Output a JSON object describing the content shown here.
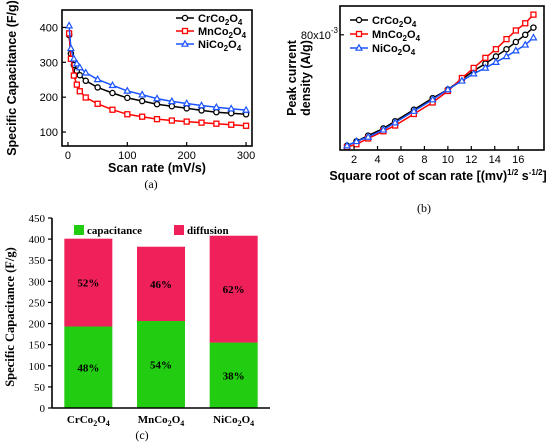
{
  "chart_data": [
    {
      "type": "line",
      "panel_label": "(a)",
      "xlabel": "Scan rate (mV/s)",
      "ylabel": "Specific Capacitance (F/g)",
      "xlim": [
        -10,
        310
      ],
      "ylim": [
        60,
        450
      ],
      "xticks": [
        0,
        100,
        200,
        300
      ],
      "yticks": [
        100,
        200,
        300,
        400
      ],
      "grid": false,
      "legend": "top-right",
      "series": [
        {
          "name": "CrCo2O4",
          "name_parts": [
            "CrCo",
            "2",
            "O",
            "4"
          ],
          "color": "#000000",
          "marker": "circle",
          "x": [
            2,
            5,
            10,
            15,
            20,
            30,
            50,
            75,
            100,
            125,
            150,
            175,
            200,
            225,
            250,
            275,
            300
          ],
          "y": [
            378,
            325,
            292,
            276,
            263,
            247,
            228,
            212,
            198,
            189,
            180,
            174,
            168,
            162,
            157,
            154,
            151
          ]
        },
        {
          "name": "MnCo2O4",
          "name_parts": [
            "MnCo",
            "2",
            "O",
            "4"
          ],
          "color": "#ff0000",
          "marker": "square",
          "x": [
            2,
            5,
            10,
            15,
            20,
            30,
            50,
            75,
            100,
            125,
            150,
            175,
            200,
            225,
            250,
            275,
            300
          ],
          "y": [
            383,
            310,
            262,
            236,
            217,
            199,
            181,
            164,
            151,
            144,
            137,
            133,
            130,
            127,
            124,
            121,
            118
          ]
        },
        {
          "name": "NiCo2O4",
          "name_parts": [
            "NiCo",
            "2",
            "O",
            "4"
          ],
          "color": "#1a53ff",
          "marker": "triangle",
          "x": [
            2,
            5,
            10,
            15,
            20,
            30,
            50,
            75,
            100,
            125,
            150,
            175,
            200,
            225,
            250,
            275,
            300
          ],
          "y": [
            405,
            340,
            310,
            296,
            285,
            270,
            251,
            234,
            218,
            207,
            196,
            188,
            182,
            176,
            171,
            167,
            163
          ]
        }
      ]
    },
    {
      "type": "line",
      "panel_label": "(b)",
      "xlabel": "Square root of scan rate [(mv)^1/2 s^-1/2]",
      "xlabel_parts": {
        "main": "Square root of scan rate [(mv)",
        "sup1": "1/2",
        "mid": " s",
        "sup2": "-1/2",
        "end": "]"
      },
      "ylabel": [
        "Peak current",
        "density (A/g)"
      ],
      "ytick_prefix": "80x10",
      "ytick_exp": "-3",
      "xlim": [
        0.8,
        18.2
      ],
      "ylim": [
        0,
        100
      ],
      "xticks": [
        2,
        4,
        6,
        8,
        10,
        12,
        14,
        16
      ],
      "yticks": [
        80
      ],
      "grid": false,
      "legend": "top-left",
      "series": [
        {
          "name": "CrCo2O4",
          "name_parts": [
            "CrCo",
            "2",
            "O",
            "4"
          ],
          "color": "#000000",
          "marker": "circle",
          "x": [
            1.4,
            2.2,
            3.2,
            4.5,
            5.5,
            7.1,
            8.7,
            10.0,
            11.2,
            12.2,
            13.2,
            14.1,
            15.0,
            15.8,
            16.6,
            17.3
          ],
          "y": [
            3,
            6,
            10,
            15,
            20,
            28,
            36,
            42,
            49,
            55,
            60,
            65,
            70,
            75,
            80,
            85
          ]
        },
        {
          "name": "MnCo2O4",
          "name_parts": [
            "MnCo",
            "2",
            "O",
            "4"
          ],
          "color": "#ff0000",
          "marker": "square",
          "x": [
            1.4,
            2.2,
            3.2,
            4.5,
            5.5,
            7.1,
            8.7,
            10.0,
            11.2,
            12.2,
            13.2,
            14.1,
            15.0,
            15.8,
            16.6,
            17.3
          ],
          "y": [
            2,
            4,
            8,
            13,
            17,
            25,
            33,
            41,
            50,
            57,
            64,
            70,
            77,
            83,
            88,
            94
          ]
        },
        {
          "name": "NiCo2O4",
          "name_parts": [
            "NiCo",
            "2",
            "O",
            "4"
          ],
          "color": "#1a53ff",
          "marker": "triangle",
          "x": [
            1.4,
            2.2,
            3.2,
            4.5,
            5.5,
            7.1,
            8.7,
            10.0,
            11.2,
            12.2,
            13.2,
            14.1,
            15.0,
            15.8,
            16.6,
            17.3
          ],
          "y": [
            3,
            6,
            9,
            14,
            19,
            27,
            35,
            42,
            48,
            53,
            57,
            61,
            65,
            69,
            73,
            78
          ]
        }
      ]
    },
    {
      "type": "bar",
      "stacked": true,
      "panel_label": "(c)",
      "ylabel": "Specific Capacitance (F/g)",
      "ylim": [
        0,
        450
      ],
      "yticks": [
        0,
        50,
        100,
        150,
        200,
        250,
        300,
        350,
        400,
        450
      ],
      "categories": [
        "CrCo2O4",
        "MnCo2O4",
        "NiCo2O4"
      ],
      "category_parts": [
        [
          "CrCo",
          "2",
          "O",
          "4"
        ],
        [
          "MnCo",
          "2",
          "O",
          "4"
        ],
        [
          "NiCo",
          "2",
          "O",
          "4"
        ]
      ],
      "legend": "top",
      "series": [
        {
          "name": "capacitance",
          "color": "#22cc11",
          "values": [
            193,
            206,
            155
          ],
          "labels": [
            "48%",
            "54%",
            "38%"
          ]
        },
        {
          "name": "diffusion",
          "color": "#f0205a",
          "values": [
            208,
            176,
            253
          ],
          "labels": [
            "52%",
            "46%",
            "62%"
          ]
        }
      ]
    }
  ]
}
